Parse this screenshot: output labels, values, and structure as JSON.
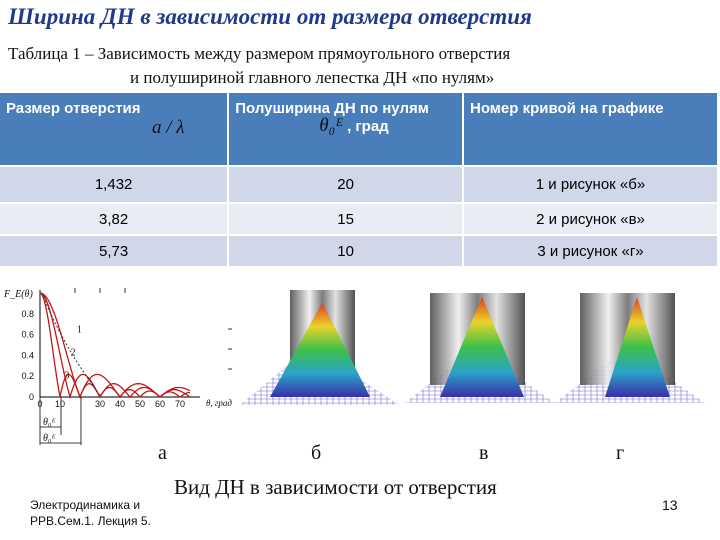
{
  "title": "Ширина ДН в зависимости от размера отверстия",
  "caption": {
    "line1": "Таблица 1 – Зависимость между размером прямоугольного отверстия",
    "line2": "и полушириной главного лепестка ДН «по нулям»"
  },
  "table": {
    "headers": [
      {
        "text": "Размер отверстия",
        "formula": "a / λ"
      },
      {
        "text": "Полуширина ДН по нулям",
        "formula": "θ₀ᴱ",
        "unit": ", град"
      },
      {
        "text": "Номер кривой на графике"
      }
    ],
    "rows": [
      [
        "1,432",
        "20",
        "1 и рисунок «б»"
      ],
      [
        "3,82",
        "15",
        "2 и рисунок «в»"
      ],
      [
        "5,73",
        "10",
        "3 и рисунок «г»"
      ]
    ]
  },
  "chart_data": {
    "type": "line",
    "ylabel": "F_E(θ)",
    "xlabel": "θ, град",
    "x_ticks": [
      "0",
      "10",
      "30",
      "40",
      "50",
      "60",
      "70"
    ],
    "y_ticks": [
      "0.8",
      "0.6",
      "0.4",
      "0.2",
      "0"
    ],
    "xlim": [
      0,
      80
    ],
    "ylim": [
      0,
      1
    ],
    "series": [
      {
        "name": "1",
        "zero": 20
      },
      {
        "name": "2",
        "zero": 15
      },
      {
        "name": "3",
        "zero": 10
      }
    ],
    "annotations": [
      "θ₀ᴱ",
      "θ₀ᴱ"
    ]
  },
  "subfigures": [
    "а",
    "б",
    "в",
    "г"
  ],
  "figure_caption": "Вид ДН в зависимости от отверстия",
  "footer": {
    "line1": "Электродинамика и",
    "line2": "РРВ.Сем.1. Лекция 5."
  },
  "page_number": "13",
  "colors": {
    "title": "#1f3a8a",
    "header_bg": "#4a7ebb",
    "row_bg_a": "#cfd7e8",
    "row_bg_b": "#e8ecf4",
    "curve": "#c0181a"
  }
}
